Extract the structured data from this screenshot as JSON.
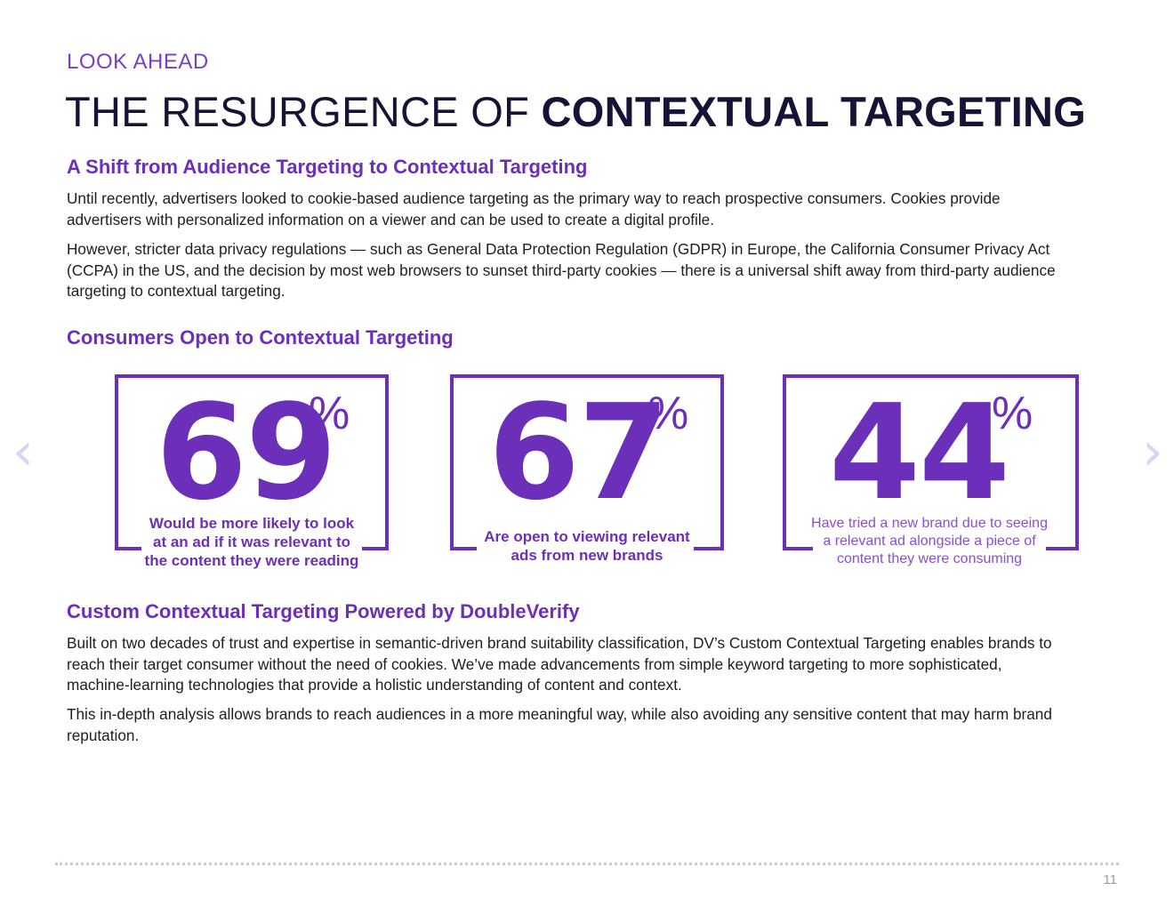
{
  "header": {
    "eyebrow": "LOOK AHEAD",
    "title_light": "THE RESURGENCE OF ",
    "title_bold": "CONTEXTUAL TARGETING"
  },
  "section1": {
    "heading": "A Shift from Audience Targeting to Contextual Targeting",
    "paragraphs": [
      "Until recently, advertisers looked to cookie-based audience targeting as the primary way to reach prospective consumers. Cookies provide advertisers with personalized information on a viewer and can be used to create a digital profile.",
      "However, stricter data privacy regulations — such as General Data Protection Regulation (GDPR) in Europe, the California Consumer Privacy Act (CCPA) in the US, and the decision by most web browsers to sunset third-party cookies — there is a universal shift away from third-party audience targeting to contextual targeting."
    ]
  },
  "section2": {
    "heading": "Consumers Open to Contextual Targeting",
    "stats": [
      {
        "value": "69",
        "unit": "%",
        "caption": "Would be more likely to look at an ad if it was relevant to the content they were reading"
      },
      {
        "value": "67",
        "unit": "%",
        "caption": "Are open to viewing relevant ads from new brands"
      },
      {
        "value": "44",
        "unit": "%",
        "caption": "Have tried a new brand due to seeing a relevant ad alongside a piece of content they were consuming"
      }
    ]
  },
  "section3": {
    "heading": "Custom Contextual Targeting Powered by DoubleVerify",
    "paragraphs": [
      "Built on two decades of trust and expertise in semantic-driven brand suitability classification, DV’s Custom Contextual Targeting enables brands to reach their target consumer without the need of cookies. We’ve made advancements from simple keyword targeting to more sophisticated, machine-learning technologies that provide a holistic understanding of content and context.",
      "This in-depth analysis allows brands to reach audiences in a more meaningful way, while also avoiding any sensitive content that may harm brand reputation."
    ]
  },
  "nav": {
    "prev_icon": "‹",
    "next_icon": "›"
  },
  "footer": {
    "page_number": "11"
  }
}
